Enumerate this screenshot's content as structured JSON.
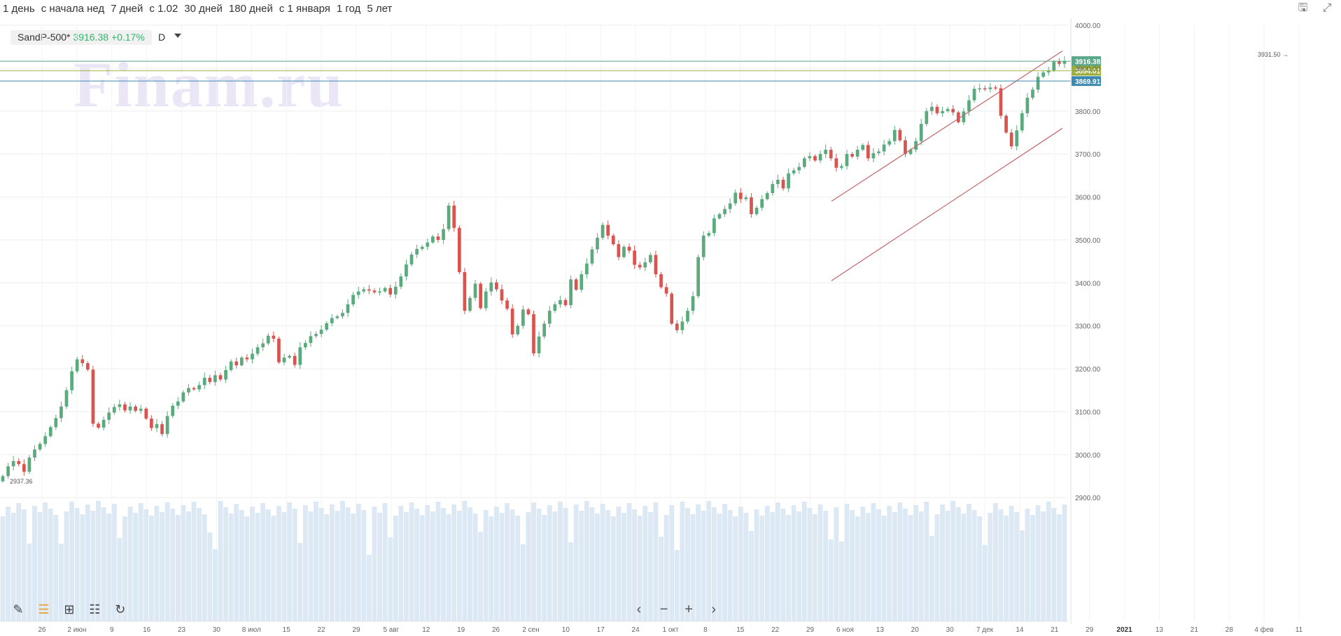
{
  "toolbar": {
    "periods": [
      "1 день",
      "с начала нед",
      "7 дней",
      "с 1.02",
      "30 дней",
      "180 дней",
      "с 1 января",
      "1 год",
      "5 лет"
    ],
    "icons": [
      "save-icon",
      "fullscreen-icon"
    ]
  },
  "legend": {
    "symbol": "SandP-500*",
    "value": "3916.38",
    "change": "+0.17%",
    "timeframe": "D"
  },
  "watermark": "Finam.ru",
  "navigation": {
    "prev": "‹",
    "zoom_out": "−",
    "zoom_in": "+",
    "next": "›"
  },
  "tools": [
    "pencil-icon",
    "history-icon",
    "add-indicator-icon",
    "settings-sliders-icon",
    "reset-icon"
  ],
  "colors": {
    "up": "#5aaa7e",
    "down": "#d9534f",
    "volume": "#dce8f3",
    "channel": "#c1666a",
    "level_top": "#5aa88a",
    "level_mid": "#9caf38",
    "level_low": "#3d8ab0"
  },
  "chart_data": {
    "type": "candlestick",
    "instrument": "SandP-500*",
    "timeframe": "D",
    "ylim": [
      2850,
      4020
    ],
    "y_ticks": [
      "4000.00",
      "3900.00",
      "3800.00",
      "3700.00",
      "3600.00",
      "3500.00",
      "3400.00",
      "3300.00",
      "3200.00",
      "3100.00",
      "3000.00",
      "2900.00"
    ],
    "x_labels": [
      "26",
      "2 июн",
      "9",
      "16",
      "23",
      "30",
      "8 июл",
      "15",
      "22",
      "29",
      "5 авг",
      "12",
      "19",
      "26",
      "2 сен",
      "10",
      "17",
      "24",
      "1 окт",
      "8",
      "15",
      "22",
      "29",
      "6 ноя",
      "13",
      "20",
      "30",
      "7 дек",
      "14",
      "21",
      "29",
      "2021",
      "13",
      "21",
      "28",
      "4 фев",
      "11"
    ],
    "annotations": [
      {
        "label": "3931.50",
        "value": 3931.5
      },
      {
        "label": "3916.38",
        "value": 3916.38,
        "color": "#5aa88a"
      },
      {
        "label": "3894.01",
        "value": 3894.01,
        "color": "#9caf38"
      },
      {
        "label": "3869.91",
        "value": 3869.91,
        "color": "#3d8ab0"
      },
      {
        "label": "2937.36",
        "value": 2937.36
      }
    ],
    "channel": {
      "upper": [
        {
          "date": "2 ноя",
          "value": 3590
        },
        {
          "date": "11 фев",
          "value": 3940
        }
      ],
      "lower": [
        {
          "date": "2 ноя",
          "value": 3405
        },
        {
          "date": "11 фев",
          "value": 3760
        }
      ]
    },
    "closes": [
      2950,
      2973,
      2985,
      2978,
      2960,
      2993,
      3012,
      3025,
      3043,
      3064,
      3085,
      3112,
      3150,
      3194,
      3222,
      3213,
      3198,
      3072,
      3063,
      3081,
      3098,
      3111,
      3117,
      3103,
      3112,
      3102,
      3107,
      3084,
      3062,
      3071,
      3048,
      3090,
      3114,
      3124,
      3145,
      3155,
      3152,
      3162,
      3179,
      3169,
      3185,
      3175,
      3197,
      3217,
      3208,
      3226,
      3222,
      3235,
      3250,
      3259,
      3277,
      3270,
      3215,
      3226,
      3230,
      3209,
      3250,
      3260,
      3276,
      3281,
      3291,
      3306,
      3318,
      3322,
      3330,
      3350,
      3372,
      3380,
      3385,
      3382,
      3378,
      3380,
      3388,
      3373,
      3391,
      3415,
      3443,
      3466,
      3479,
      3484,
      3494,
      3508,
      3500,
      3525,
      3580,
      3528,
      3425,
      3335,
      3365,
      3398,
      3341,
      3380,
      3401,
      3385,
      3359,
      3340,
      3280,
      3300,
      3338,
      3327,
      3236,
      3275,
      3305,
      3335,
      3350,
      3360,
      3348,
      3408,
      3384,
      3420,
      3445,
      3478,
      3505,
      3535,
      3510,
      3490,
      3460,
      3484,
      3475,
      3442,
      3436,
      3448,
      3465,
      3420,
      3390,
      3375,
      3305,
      3290,
      3310,
      3335,
      3369,
      3460,
      3510,
      3516,
      3550,
      3560,
      3572,
      3585,
      3610,
      3595,
      3599,
      3560,
      3575,
      3595,
      3609,
      3630,
      3640,
      3620,
      3655,
      3662,
      3670,
      3690,
      3695,
      3685,
      3700,
      3710,
      3690,
      3668,
      3672,
      3700,
      3694,
      3710,
      3721,
      3690,
      3702,
      3706,
      3722,
      3730,
      3756,
      3732,
      3700,
      3710,
      3730,
      3770,
      3800,
      3810,
      3795,
      3800,
      3805,
      3797,
      3774,
      3799,
      3825,
      3852,
      3853,
      3851,
      3855,
      3853,
      3789,
      3750,
      3718,
      3755,
      3795,
      3831,
      3850,
      3880,
      3890,
      3894,
      3915,
      3910,
      3916
    ]
  }
}
